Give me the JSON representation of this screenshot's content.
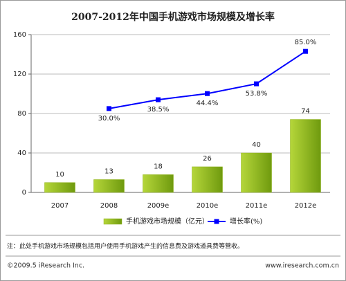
{
  "chart_data": {
    "type": "bar-line",
    "title": "2007-2012年中国手机游戏市场规模及增长率",
    "categories": [
      "2007",
      "2008",
      "2009e",
      "2010e",
      "2011e",
      "2012e"
    ],
    "series": [
      {
        "name": "手机游戏市场规模（亿元）",
        "type": "bar",
        "color": "#8fb21a",
        "values": [
          10,
          13,
          18,
          26,
          40,
          74
        ]
      },
      {
        "name": "增长率(%)",
        "type": "line",
        "axis": "y2",
        "color": "#0000ff",
        "values": [
          null,
          30.0,
          38.5,
          44.4,
          53.8,
          85.0
        ],
        "value_labels": [
          null,
          "30.0%",
          "38.5%",
          "44.4%",
          "53.8%",
          "85.0%"
        ]
      }
    ],
    "ylim": [
      0,
      160
    ],
    "yticks": [
      0,
      40,
      80,
      120,
      160
    ],
    "y2lim": [
      -50.6,
      101.1
    ],
    "grid": true,
    "note": "注：此处手机游戏市场规模包括用户使用手机游戏产生的信息费及游戏道具费等营收。",
    "source": "©2009.5 iResearch Inc.",
    "url": "www.iresearch.com.cn"
  }
}
